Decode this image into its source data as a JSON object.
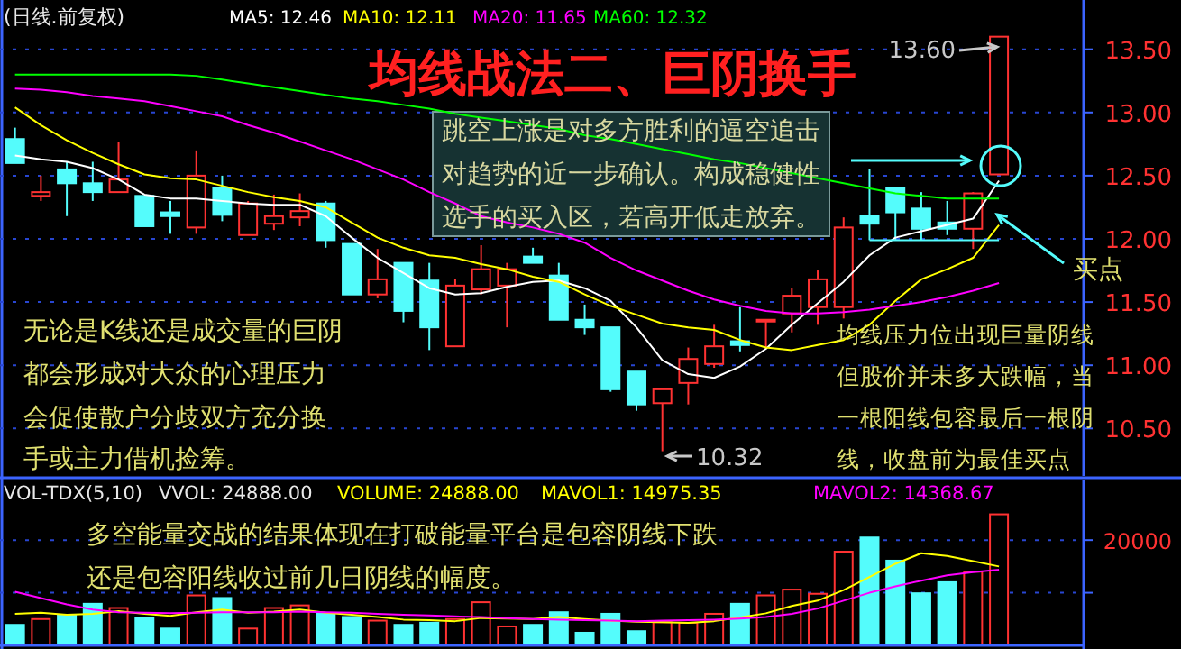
{
  "chart_data": [
    {
      "type": "candlestick",
      "title": "均线战法二、巨阴换手",
      "subtitle": "(日线.前复权)",
      "categories": [
        null,
        null,
        null,
        null,
        null,
        null,
        null,
        null,
        null,
        null,
        null,
        null,
        null,
        null,
        null,
        null,
        null,
        null,
        null,
        null,
        null,
        null,
        null,
        null,
        null,
        null,
        null,
        null,
        null,
        null,
        null,
        null,
        null,
        null,
        null,
        null,
        null,
        null,
        null
      ],
      "ohlc": [
        [
          12.79,
          12.88,
          12.6,
          12.6
        ],
        [
          12.34,
          12.5,
          12.3,
          12.37
        ],
        [
          12.55,
          12.61,
          12.18,
          12.44
        ],
        [
          12.44,
          12.61,
          12.3,
          12.37
        ],
        [
          12.37,
          12.77,
          12.37,
          12.47
        ],
        [
          12.34,
          12.34,
          12.1,
          12.1
        ],
        [
          12.21,
          12.3,
          12.04,
          12.18
        ],
        [
          12.09,
          12.7,
          12.04,
          12.5
        ],
        [
          12.4,
          12.5,
          12.14,
          12.19
        ],
        [
          12.03,
          12.3,
          12.03,
          12.28
        ],
        [
          12.12,
          12.35,
          12.07,
          12.18
        ],
        [
          12.17,
          12.36,
          12.1,
          12.22
        ],
        [
          12.28,
          12.3,
          11.93,
          11.99
        ],
        [
          11.96,
          11.96,
          11.56,
          11.56
        ],
        [
          11.56,
          11.92,
          11.53,
          11.68
        ],
        [
          11.81,
          11.81,
          11.34,
          11.43
        ],
        [
          11.67,
          11.81,
          11.12,
          11.3
        ],
        [
          11.15,
          11.68,
          11.15,
          11.63
        ],
        [
          11.6,
          11.95,
          11.56,
          11.76
        ],
        [
          11.63,
          11.81,
          11.3,
          11.76
        ],
        [
          11.86,
          11.93,
          11.81,
          11.81
        ],
        [
          11.71,
          11.81,
          11.36,
          11.36
        ],
        [
          11.36,
          11.48,
          11.24,
          11.3
        ],
        [
          11.3,
          11.3,
          10.79,
          10.81
        ],
        [
          10.95,
          10.95,
          10.64,
          10.69
        ],
        [
          10.7,
          10.82,
          10.32,
          10.81
        ],
        [
          10.86,
          11.14,
          10.69,
          11.05
        ],
        [
          11.01,
          11.32,
          10.98,
          11.15
        ],
        [
          11.19,
          11.46,
          11.11,
          11.16
        ],
        [
          11.35,
          11.36,
          11.13,
          11.36
        ],
        [
          11.41,
          11.61,
          11.26,
          11.55
        ],
        [
          11.46,
          11.75,
          11.32,
          11.68
        ],
        [
          11.46,
          12.17,
          11.37,
          12.09
        ],
        [
          12.18,
          12.55,
          11.99,
          12.12
        ],
        [
          12.4,
          12.4,
          11.99,
          12.21
        ],
        [
          12.24,
          12.37,
          11.99,
          12.08
        ],
        [
          12.13,
          12.3,
          12.03,
          12.08
        ],
        [
          12.08,
          12.37,
          11.92,
          12.36
        ],
        [
          12.51,
          13.6,
          12.51,
          13.6
        ]
      ],
      "colors": [
        "#54fcfc",
        "#ff3232",
        "#54fcfc",
        "#54fcfc",
        "#ff3232",
        "#54fcfc",
        "#54fcfc",
        "#ff3232",
        "#54fcfc",
        "#ff3232",
        "#ff3232",
        "#ff3232",
        "#54fcfc",
        "#54fcfc",
        "#ff3232",
        "#54fcfc",
        "#54fcfc",
        "#ff3232",
        "#ff3232",
        "#ff3232",
        "#54fcfc",
        "#54fcfc",
        "#54fcfc",
        "#54fcfc",
        "#54fcfc",
        "#ff3232",
        "#ff3232",
        "#ff3232",
        "#54fcfc",
        "#ff3232",
        "#ff3232",
        "#ff3232",
        "#ff3232",
        "#54fcfc",
        "#54fcfc",
        "#54fcfc",
        "#54fcfc",
        "#ff3232",
        "#ff3232"
      ],
      "series": [
        {
          "name": "MA5: 12.46",
          "type": "line",
          "color": "#ffffff",
          "values": [
            12.66,
            12.63,
            12.61,
            12.56,
            12.47,
            12.35,
            12.32,
            12.32,
            12.3,
            12.28,
            12.27,
            12.27,
            12.18,
            12.01,
            11.85,
            11.73,
            11.61,
            11.56,
            11.57,
            11.62,
            11.66,
            11.67,
            11.61,
            11.51,
            11.3,
            11.04,
            10.93,
            10.9,
            10.99,
            11.13,
            11.32,
            11.49,
            11.66,
            11.87,
            12.01,
            12.06,
            12.11,
            12.16,
            12.46
          ]
        },
        {
          "name": "MA10: 12.11",
          "type": "line",
          "color": "#ffff00",
          "values": [
            13.04,
            12.9,
            12.78,
            12.68,
            12.59,
            12.51,
            12.48,
            12.47,
            12.42,
            12.37,
            12.33,
            12.3,
            12.25,
            12.13,
            12.01,
            11.93,
            11.87,
            11.85,
            11.8,
            11.76,
            11.7,
            11.66,
            11.56,
            11.47,
            11.4,
            11.33,
            11.3,
            11.28,
            11.2,
            11.14,
            11.12,
            11.16,
            11.2,
            11.32,
            11.51,
            11.68,
            11.76,
            11.85,
            12.11
          ]
        },
        {
          "name": "MA20: 11.65",
          "type": "line",
          "color": "#ff00ff",
          "values": [
            13.19,
            13.18,
            13.16,
            13.13,
            13.11,
            13.09,
            13.05,
            13.01,
            12.97,
            12.9,
            12.84,
            12.77,
            12.7,
            12.63,
            12.55,
            12.47,
            12.37,
            12.28,
            12.18,
            12.13,
            12.09,
            12.04,
            11.97,
            11.85,
            11.75,
            11.67,
            11.59,
            11.52,
            11.47,
            11.43,
            11.41,
            11.41,
            11.42,
            11.44,
            11.47,
            11.5,
            11.54,
            11.59,
            11.65
          ]
        },
        {
          "name": "MA60: 12.32",
          "type": "line",
          "color": "#00ff00",
          "values": [
            13.3,
            13.3,
            13.3,
            13.3,
            13.3,
            13.3,
            13.3,
            13.29,
            13.26,
            13.23,
            13.2,
            13.17,
            13.14,
            13.11,
            13.09,
            13.06,
            13.03,
            12.99,
            12.96,
            12.93,
            12.9,
            12.87,
            12.82,
            12.79,
            12.75,
            12.71,
            12.67,
            12.63,
            12.6,
            12.56,
            12.52,
            12.48,
            12.44,
            12.4,
            12.36,
            12.34,
            12.32,
            12.32,
            12.32
          ]
        },
        {
          "type": "line",
          "color": "#54fcfc",
          "values": [
            null,
            null,
            null,
            null,
            null,
            null,
            null,
            null,
            null,
            null,
            null,
            null,
            null,
            null,
            null,
            null,
            null,
            null,
            null,
            null,
            null,
            null,
            null,
            null,
            null,
            null,
            null,
            null,
            null,
            null,
            null,
            null,
            null,
            11.99,
            11.99,
            11.99,
            11.99,
            11.99,
            11.99
          ]
        }
      ],
      "ylim": [
        10.11,
        13.89
      ],
      "yticks": [
        {
          "value": 10.5,
          "label": "10.50"
        },
        {
          "value": 11,
          "label": "11.00"
        },
        {
          "value": 11.5,
          "label": "11.50"
        },
        {
          "value": 12,
          "label": "12.00"
        },
        {
          "value": 12.5,
          "label": "12.50"
        },
        {
          "value": 13,
          "label": "13.00"
        },
        {
          "value": 13.5,
          "label": "13.50"
        }
      ],
      "grid": "y",
      "annotations": [
        "13.60",
        "10.32",
        "跳空上涨是对多方胜利的逼空追击",
        "对趋势的近一步确认。构成稳健性",
        "选手的买入区，若高开低走放弃。",
        "无论是K线还是成交量的巨阴",
        "都会形成对大众的心理压力",
        "会促使散户分歧双方充分换",
        "手或主力借机捡筹。",
        "均线压力位出现巨量阴线",
        "但股价并未多大跌幅，当",
        "一根阳线包容最后一根阴",
        "线，收盘前为最佳买点",
        "买点"
      ]
    },
    {
      "type": "bar",
      "title": "VOL-TDX(5,10)",
      "categories": [
        null,
        null,
        null,
        null,
        null,
        null,
        null,
        null,
        null,
        null,
        null,
        null,
        null,
        null,
        null,
        null,
        null,
        null,
        null,
        null,
        null,
        null,
        null,
        null,
        null,
        null,
        null,
        null,
        null,
        null,
        null,
        null,
        null,
        null,
        null,
        null,
        null,
        null,
        null
      ],
      "series": [
        {
          "type": "bar",
          "values": [
            3900,
            5000,
            5800,
            7900,
            7100,
            5200,
            3200,
            9500,
            9000,
            3200,
            7100,
            7600,
            6000,
            5400,
            4700,
            3900,
            4300,
            5000,
            8200,
            3600,
            3900,
            6300,
            2400,
            6000,
            2700,
            4400,
            4300,
            6000,
            7900,
            9500,
            10600,
            9800,
            17800,
            20500,
            16100,
            9900,
            12000,
            14000,
            24900
          ],
          "colors": [
            "#54fcfc",
            "#ff3232",
            "#54fcfc",
            "#54fcfc",
            "#ff3232",
            "#54fcfc",
            "#54fcfc",
            "#ff3232",
            "#54fcfc",
            "#ff3232",
            "#ff3232",
            "#ff3232",
            "#54fcfc",
            "#54fcfc",
            "#ff3232",
            "#54fcfc",
            "#54fcfc",
            "#ff3232",
            "#ff3232",
            "#ff3232",
            "#54fcfc",
            "#54fcfc",
            "#54fcfc",
            "#54fcfc",
            "#54fcfc",
            "#ff3232",
            "#ff3232",
            "#ff3232",
            "#54fcfc",
            "#ff3232",
            "#ff3232",
            "#ff3232",
            "#ff3232",
            "#54fcfc",
            "#54fcfc",
            "#54fcfc",
            "#54fcfc",
            "#ff3232",
            "#ff3232"
          ]
        },
        {
          "name": "MAVOL1: 14975.35",
          "type": "line",
          "color": "#ffff00",
          "values": [
            6000,
            6200,
            5800,
            6000,
            6500,
            6000,
            5600,
            6300,
            6800,
            6200,
            6400,
            6800,
            6200,
            5800,
            5400,
            4900,
            4800,
            4600,
            5200,
            5100,
            5000,
            5400,
            5000,
            4700,
            4500,
            4400,
            4300,
            4600,
            5300,
            6100,
            7500,
            8500,
            10500,
            13000,
            15500,
            17500,
            17000,
            16000,
            15000
          ]
        },
        {
          "name": "MAVOL2: 14368.67",
          "type": "line",
          "color": "#ff00ff",
          "values": [
            10200,
            9000,
            7800,
            6800,
            6300,
            6200,
            6100,
            6200,
            6300,
            6300,
            6300,
            6400,
            6300,
            6200,
            6000,
            5800,
            5700,
            5500,
            5400,
            5200,
            5000,
            4900,
            4800,
            4700,
            4600,
            4700,
            4800,
            4900,
            5100,
            5400,
            6000,
            7000,
            8500,
            10000,
            11200,
            12300,
            13300,
            13900,
            14400
          ]
        }
      ],
      "ylim": [
        0,
        31500
      ],
      "yticks": [
        {
          "value": 10000,
          "label": null
        },
        20000
      ],
      "grid": "y",
      "annotations": [
        "VVOL: 24888.00",
        "VOLUME: 24888.00",
        "多空能量交战的结果体现在打破能量平台是包容阴线下跌",
        "还是包容阳线收过前几日阴线的幅度。"
      ]
    }
  ]
}
